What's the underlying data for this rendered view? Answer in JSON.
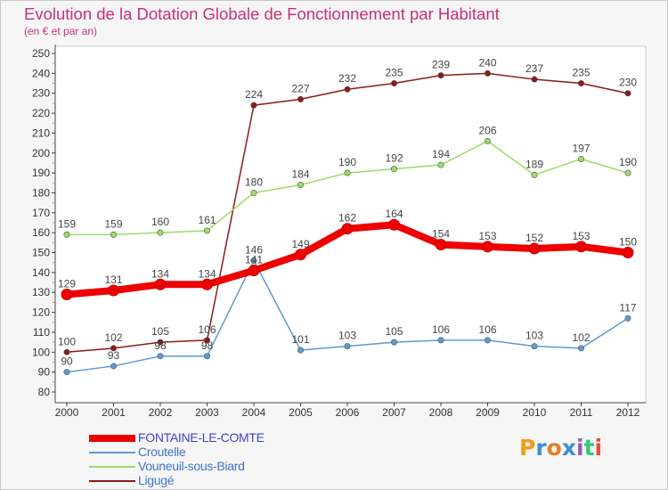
{
  "title": "Evolution de la Dotation Globale de Fonctionnement par Habitant",
  "subtitle": "(en € et par an)",
  "chart_data": {
    "type": "line",
    "title": "Evolution de la Dotation Globale de Fonctionnement par Habitant",
    "subtitle": "(en € et par an)",
    "xlabel": "",
    "ylabel": "",
    "x": [
      "2000",
      "2001",
      "2002",
      "2003",
      "2004",
      "2005",
      "2006",
      "2007",
      "2008",
      "2009",
      "2010",
      "2011",
      "2012"
    ],
    "ylim": [
      80,
      250
    ],
    "yticks": [
      80,
      90,
      100,
      110,
      120,
      130,
      140,
      150,
      160,
      170,
      180,
      190,
      200,
      210,
      220,
      230,
      240,
      250
    ],
    "grid": false,
    "legend_position": "bottom-left",
    "series": [
      {
        "name": "FONTAINE-LE-COMTE",
        "color": "#ee0000",
        "values": [
          129,
          131,
          134,
          134,
          141,
          149,
          162,
          164,
          154,
          153,
          152,
          153,
          150
        ]
      },
      {
        "name": "Croutelle",
        "color": "#5b9bd5",
        "values": [
          90,
          93,
          98,
          98,
          146,
          101,
          103,
          105,
          106,
          106,
          103,
          102,
          117
        ]
      },
      {
        "name": "Vouneuil-sous-Biard",
        "color": "#99dd66",
        "values": [
          159,
          159,
          160,
          161,
          180,
          184,
          190,
          192,
          194,
          206,
          189,
          197,
          190
        ]
      },
      {
        "name": "Ligugé",
        "color": "#8b1a1a",
        "values": [
          100,
          102,
          105,
          106,
          224,
          227,
          232,
          235,
          239,
          240,
          237,
          235,
          230
        ]
      }
    ]
  },
  "legend_colors": {
    "FONTAINE-LE-COMTE": "#4040cc",
    "Croutelle": "#4472c4",
    "Vouneuil-sous-Biard": "#4472c4",
    "Ligugé": "#4472c4"
  },
  "logo": {
    "letters": [
      "P",
      "r",
      "o",
      "x",
      "i",
      "t",
      "i"
    ],
    "colors": [
      "#f39c12",
      "#3b8ed8",
      "#e67e22",
      "#3b8ed8",
      "#9b59b6",
      "#2ecc71",
      "#e74c3c"
    ]
  }
}
